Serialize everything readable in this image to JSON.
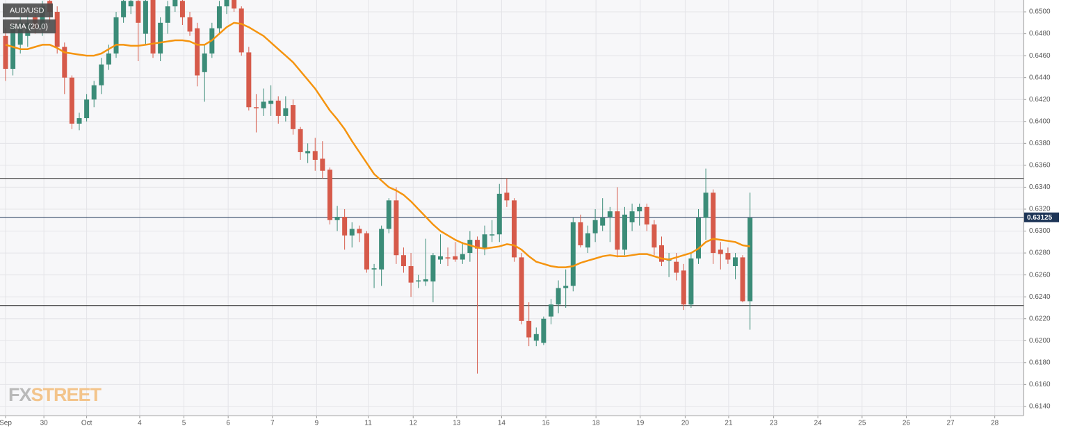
{
  "chart_data": {
    "type": "candlestick",
    "candles": {
      "name": "AUD/USD",
      "up_color": "#3b8c78",
      "down_color": "#d65a4a",
      "ohlc": [
        [
          0.6478,
          0.6485,
          0.6437,
          0.6448
        ],
        [
          0.6448,
          0.6492,
          0.6442,
          0.6488
        ],
        [
          0.647,
          0.6495,
          0.6462,
          0.649
        ],
        [
          0.6478,
          0.6497,
          0.6468,
          0.649
        ],
        [
          0.6495,
          0.6505,
          0.648,
          0.6485
        ],
        [
          0.6485,
          0.651,
          0.6478,
          0.6505
        ],
        [
          0.651,
          0.6515,
          0.649,
          0.65
        ],
        [
          0.65,
          0.6505,
          0.6462,
          0.6468
        ],
        [
          0.6468,
          0.6472,
          0.6425,
          0.644
        ],
        [
          0.644,
          0.6442,
          0.6393,
          0.6398
        ],
        [
          0.6398,
          0.6408,
          0.6392,
          0.6403
        ],
        [
          0.6403,
          0.6425,
          0.64,
          0.642
        ],
        [
          0.642,
          0.6437,
          0.6413,
          0.6433
        ],
        [
          0.6433,
          0.6458,
          0.6425,
          0.6452
        ],
        [
          0.6452,
          0.647,
          0.6447,
          0.6462
        ],
        [
          0.6462,
          0.65,
          0.6458,
          0.6495
        ],
        [
          0.6495,
          0.6515,
          0.649,
          0.651
        ],
        [
          0.6505,
          0.6515,
          0.6498,
          0.651
        ],
        [
          0.651,
          0.6512,
          0.6455,
          0.649
        ],
        [
          0.648,
          0.6515,
          0.647,
          0.651
        ],
        [
          0.6515,
          0.6515,
          0.6458,
          0.6462
        ],
        [
          0.6462,
          0.6495,
          0.6455,
          0.649
        ],
        [
          0.649,
          0.651,
          0.648,
          0.6505
        ],
        [
          0.6505,
          0.6515,
          0.65,
          0.6512
        ],
        [
          0.651,
          0.6512,
          0.6488,
          0.6495
        ],
        [
          0.6495,
          0.65,
          0.6478,
          0.6482
        ],
        [
          0.6485,
          0.649,
          0.6432,
          0.6442
        ],
        [
          0.6445,
          0.647,
          0.6418,
          0.6462
        ],
        [
          0.6462,
          0.649,
          0.6458,
          0.6485
        ],
        [
          0.6485,
          0.651,
          0.648,
          0.6505
        ],
        [
          0.6505,
          0.6515,
          0.6498,
          0.6512
        ],
        [
          0.6512,
          0.6515,
          0.65,
          0.6503
        ],
        [
          0.6503,
          0.6505,
          0.646,
          0.6463
        ],
        [
          0.6463,
          0.6468,
          0.641,
          0.6413
        ],
        [
          0.6413,
          0.6425,
          0.639,
          0.6412
        ],
        [
          0.6412,
          0.643,
          0.6405,
          0.6418
        ],
        [
          0.6416,
          0.6433,
          0.6405,
          0.6419
        ],
        [
          0.6419,
          0.6423,
          0.6398,
          0.6405
        ],
        [
          0.6405,
          0.6423,
          0.64,
          0.6412
        ],
        [
          0.6415,
          0.642,
          0.6388,
          0.6393
        ],
        [
          0.6393,
          0.6395,
          0.6365,
          0.6372
        ],
        [
          0.6371,
          0.638,
          0.6362,
          0.6373
        ],
        [
          0.6373,
          0.6385,
          0.6355,
          0.6365
        ],
        [
          0.6366,
          0.6382,
          0.6348,
          0.6355
        ],
        [
          0.6356,
          0.6358,
          0.6306,
          0.631
        ],
        [
          0.631,
          0.6323,
          0.63,
          0.6313
        ],
        [
          0.6313,
          0.632,
          0.6283,
          0.6296
        ],
        [
          0.6296,
          0.6308,
          0.6285,
          0.6302
        ],
        [
          0.6302,
          0.6305,
          0.629,
          0.6298
        ],
        [
          0.6298,
          0.63,
          0.6262,
          0.6265
        ],
        [
          0.6265,
          0.627,
          0.6248,
          0.6266
        ],
        [
          0.6265,
          0.6305,
          0.625,
          0.6302
        ],
        [
          0.6302,
          0.633,
          0.6298,
          0.6328
        ],
        [
          0.6328,
          0.634,
          0.627,
          0.6278
        ],
        [
          0.6278,
          0.6285,
          0.6262,
          0.6268
        ],
        [
          0.6268,
          0.628,
          0.624,
          0.6253
        ],
        [
          0.6254,
          0.626,
          0.6248,
          0.6255
        ],
        [
          0.6254,
          0.6293,
          0.625,
          0.6256
        ],
        [
          0.6254,
          0.628,
          0.6235,
          0.6278
        ],
        [
          0.6274,
          0.6297,
          0.627,
          0.6277
        ],
        [
          0.6276,
          0.6285,
          0.6268,
          0.6275
        ],
        [
          0.6277,
          0.629,
          0.6272,
          0.6274
        ],
        [
          0.6274,
          0.629,
          0.627,
          0.6279
        ],
        [
          0.628,
          0.63,
          0.6272,
          0.6292
        ],
        [
          0.6292,
          0.6295,
          0.617,
          0.6284
        ],
        [
          0.6284,
          0.6305,
          0.6278,
          0.6297
        ],
        [
          0.6296,
          0.631,
          0.629,
          0.6297
        ],
        [
          0.6297,
          0.6343,
          0.629,
          0.6334
        ],
        [
          0.6335,
          0.6348,
          0.6322,
          0.6328
        ],
        [
          0.6328,
          0.633,
          0.6272,
          0.6276
        ],
        [
          0.6276,
          0.628,
          0.6215,
          0.6218
        ],
        [
          0.6218,
          0.6235,
          0.6195,
          0.6203
        ],
        [
          0.62,
          0.6212,
          0.6195,
          0.6206
        ],
        [
          0.6198,
          0.6222,
          0.6196,
          0.622
        ],
        [
          0.6222,
          0.6238,
          0.6215,
          0.6233
        ],
        [
          0.6233,
          0.6255,
          0.6225,
          0.6248
        ],
        [
          0.6248,
          0.6265,
          0.623,
          0.625
        ],
        [
          0.625,
          0.6312,
          0.6245,
          0.6308
        ],
        [
          0.6308,
          0.6315,
          0.6285,
          0.6287
        ],
        [
          0.6285,
          0.6305,
          0.628,
          0.6298
        ],
        [
          0.6298,
          0.632,
          0.629,
          0.631
        ],
        [
          0.6305,
          0.633,
          0.63,
          0.6312
        ],
        [
          0.6313,
          0.6322,
          0.629,
          0.6318
        ],
        [
          0.6318,
          0.634,
          0.6276,
          0.6283
        ],
        [
          0.6283,
          0.6322,
          0.6278,
          0.6315
        ],
        [
          0.6308,
          0.6325,
          0.63,
          0.6318
        ],
        [
          0.6318,
          0.6325,
          0.6305,
          0.6322
        ],
        [
          0.6322,
          0.6325,
          0.63,
          0.6306
        ],
        [
          0.6306,
          0.631,
          0.6278,
          0.6285
        ],
        [
          0.6287,
          0.6295,
          0.6268,
          0.6272
        ],
        [
          0.6273,
          0.628,
          0.6258,
          0.6274
        ],
        [
          0.6272,
          0.628,
          0.6255,
          0.6262
        ],
        [
          0.6264,
          0.627,
          0.6228,
          0.6233
        ],
        [
          0.6233,
          0.628,
          0.623,
          0.6275
        ],
        [
          0.6275,
          0.632,
          0.627,
          0.6312
        ],
        [
          0.6312,
          0.6357,
          0.6292,
          0.6335
        ],
        [
          0.6335,
          0.6338,
          0.627,
          0.628
        ],
        [
          0.6283,
          0.629,
          0.6265,
          0.6279
        ],
        [
          0.628,
          0.6285,
          0.627,
          0.6274
        ],
        [
          0.6268,
          0.628,
          0.6256,
          0.6276
        ],
        [
          0.6276,
          0.6278,
          0.6235,
          0.6236
        ],
        [
          0.6236,
          0.6335,
          0.621,
          0.6312
        ]
      ]
    },
    "series": [
      {
        "name": "SMA (20,0)",
        "color": "#f5940f",
        "values": [
          0.647,
          0.6468,
          0.6466,
          0.6466,
          0.6468,
          0.647,
          0.647,
          0.6467,
          0.6463,
          0.6462,
          0.6461,
          0.646,
          0.646,
          0.6462,
          0.6466,
          0.647,
          0.647,
          0.6469,
          0.6469,
          0.647,
          0.6471,
          0.6472,
          0.6473,
          0.6474,
          0.6474,
          0.6473,
          0.647,
          0.647,
          0.6474,
          0.648,
          0.6486,
          0.649,
          0.6489,
          0.6486,
          0.6482,
          0.6478,
          0.6472,
          0.6466,
          0.646,
          0.6454,
          0.6446,
          0.6438,
          0.643,
          0.642,
          0.641,
          0.6402,
          0.6393,
          0.6382,
          0.6372,
          0.6362,
          0.6352,
          0.6346,
          0.634,
          0.6337,
          0.6333,
          0.6327,
          0.632,
          0.6313,
          0.6306,
          0.63,
          0.6296,
          0.6292,
          0.6289,
          0.6287,
          0.6285,
          0.6284,
          0.6285,
          0.6286,
          0.6288,
          0.6287,
          0.6283,
          0.6277,
          0.6272,
          0.627,
          0.6268,
          0.6267,
          0.6267,
          0.6268,
          0.6271,
          0.6273,
          0.6275,
          0.6277,
          0.6278,
          0.6277,
          0.6277,
          0.6278,
          0.6279,
          0.6279,
          0.6277,
          0.6275,
          0.6274,
          0.6276,
          0.6278,
          0.628,
          0.6284,
          0.629,
          0.6293,
          0.6292,
          0.6291,
          0.629,
          0.6287,
          0.6286
        ]
      }
    ],
    "hlines": [
      0.6348,
      0.6232
    ],
    "hline_color": "#222222",
    "price_line": {
      "value": 0.63125,
      "label": "0.63125",
      "color": "#1d3557"
    },
    "ylim": [
      0.61317,
      0.65108
    ],
    "yticks": [
      {
        "value": 0.614,
        "label": "0.6140"
      },
      {
        "value": 0.616,
        "label": "0.6160"
      },
      {
        "value": 0.618,
        "label": "0.6180"
      },
      {
        "value": 0.62,
        "label": "0.6200"
      },
      {
        "value": 0.622,
        "label": "0.6220"
      },
      {
        "value": 0.624,
        "label": "0.6240"
      },
      {
        "value": 0.626,
        "label": "0.6260"
      },
      {
        "value": 0.628,
        "label": "0.6280"
      },
      {
        "value": 0.63,
        "label": "0.6300"
      },
      {
        "value": 0.632,
        "label": "0.6320"
      },
      {
        "value": 0.634,
        "label": "0.6340"
      },
      {
        "value": 0.636,
        "label": "0.6360"
      },
      {
        "value": 0.638,
        "label": "0.6380"
      },
      {
        "value": 0.64,
        "label": "0.6400"
      },
      {
        "value": 0.642,
        "label": "0.6420"
      },
      {
        "value": 0.644,
        "label": "0.6440"
      },
      {
        "value": 0.646,
        "label": "0.6460"
      },
      {
        "value": 0.648,
        "label": "0.6480"
      },
      {
        "value": 0.65,
        "label": "0.6500"
      }
    ],
    "xlim": [
      -0.755,
      138.1
    ],
    "xticks": [
      {
        "value": 0,
        "label": "Sep"
      },
      {
        "value": 5.2,
        "label": "30"
      },
      {
        "value": 11.0,
        "label": "Oct"
      },
      {
        "value": 18.2,
        "label": "4"
      },
      {
        "value": 24.2,
        "label": "5"
      },
      {
        "value": 30.2,
        "label": "6"
      },
      {
        "value": 36.2,
        "label": "7"
      },
      {
        "value": 42.2,
        "label": "9"
      },
      {
        "value": 49.2,
        "label": "11"
      },
      {
        "value": 55.3,
        "label": "12"
      },
      {
        "value": 61.2,
        "label": "13"
      },
      {
        "value": 67.3,
        "label": "14"
      },
      {
        "value": 73.3,
        "label": "16"
      },
      {
        "value": 80.1,
        "label": "18"
      },
      {
        "value": 86.1,
        "label": "19"
      },
      {
        "value": 92.2,
        "label": "20"
      },
      {
        "value": 98.1,
        "label": "21"
      },
      {
        "value": 104.2,
        "label": "23"
      },
      {
        "value": 110.2,
        "label": "24"
      },
      {
        "value": 116.2,
        "label": "25"
      },
      {
        "value": 122.2,
        "label": "26"
      },
      {
        "value": 128.2,
        "label": "27"
      },
      {
        "value": 134.2,
        "label": "28"
      }
    ],
    "grid": true,
    "watermark": [
      "FX",
      "STREET"
    ]
  }
}
